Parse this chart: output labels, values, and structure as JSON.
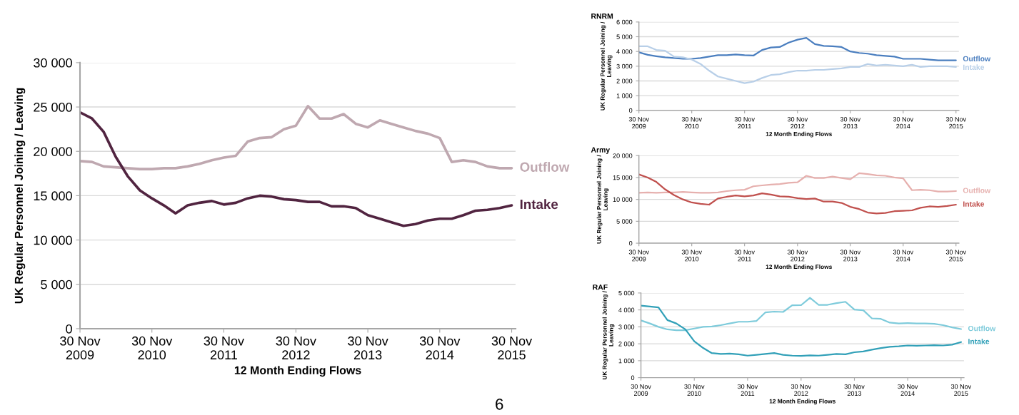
{
  "chart_data": [
    {
      "type": "line",
      "ylabel": "UK Regular Personnel Joining / Leaving",
      "xlabel": "12 Month Ending Flows",
      "annotations": [
        "6"
      ],
      "x": [
        "2009-11-30",
        "2010-01-30",
        "2010-03-30",
        "2010-05-30",
        "2010-07-30",
        "2010-09-30",
        "2010-11-30",
        "2011-01-30",
        "2011-03-30",
        "2011-05-30",
        "2011-07-30",
        "2011-09-30",
        "2011-11-30",
        "2012-01-30",
        "2012-03-30",
        "2012-05-30",
        "2012-07-30",
        "2012-09-30",
        "2012-11-30",
        "2013-01-30",
        "2013-03-30",
        "2013-05-30",
        "2013-07-30",
        "2013-09-30",
        "2013-11-30",
        "2014-01-30",
        "2014-03-30",
        "2014-05-30",
        "2014-07-30",
        "2014-09-30",
        "2014-11-30",
        "2015-01-30",
        "2015-03-30",
        "2015-05-30",
        "2015-07-30",
        "2015-09-30",
        "2015-11-30"
      ],
      "series": [
        {
          "name": "Outflow",
          "color": "#bfa8b0",
          "values": [
            18900,
            18800,
            18300,
            18200,
            18100,
            18000,
            18000,
            18100,
            18100,
            18300,
            18600,
            19000,
            19300,
            19500,
            21100,
            21500,
            21600,
            22500,
            22900,
            25100,
            23700,
            23700,
            24200,
            23100,
            22700,
            23500,
            23100,
            22700,
            22300,
            22000,
            21500,
            18800,
            19000,
            18800,
            18300,
            18100,
            18100
          ]
        },
        {
          "name": "Intake",
          "color": "#512440",
          "values": [
            24400,
            23700,
            22200,
            19400,
            17200,
            15600,
            14700,
            13900,
            13000,
            13900,
            14200,
            14400,
            14000,
            14200,
            14700,
            15000,
            14900,
            14600,
            14500,
            14300,
            14300,
            13800,
            13800,
            13600,
            12800,
            12400,
            12000,
            11600,
            11800,
            12200,
            12400,
            12400,
            12800,
            13300,
            13400,
            13600,
            13900
          ]
        }
      ],
      "xlim": [
        "2009-11-30",
        "2015-12-20"
      ],
      "xticks": [
        {
          "value": "2009-11-30",
          "label": "30 Nov\n2009"
        },
        {
          "value": "2010-11-30",
          "label": "30 Nov\n2010"
        },
        {
          "value": "2011-11-30",
          "label": "30 Nov\n2011"
        },
        {
          "value": "2012-11-30",
          "label": "30 Nov\n2012"
        },
        {
          "value": "2013-11-30",
          "label": "30 Nov\n2013"
        },
        {
          "value": "2014-11-30",
          "label": "30 Nov\n2014"
        },
        {
          "value": "2015-11-30",
          "label": "30 Nov\n2015"
        }
      ],
      "ylim": [
        0,
        30000
      ],
      "yticks": [
        {
          "value": 0,
          "label": "0"
        },
        {
          "value": 5000,
          "label": "5 000"
        },
        {
          "value": 10000,
          "label": "10 000"
        },
        {
          "value": 15000,
          "label": "15 000"
        },
        {
          "value": 20000,
          "label": "20 000"
        },
        {
          "value": 25000,
          "label": "25 000"
        },
        {
          "value": 30000,
          "label": "30 000"
        }
      ],
      "grid": "y",
      "legend": false
    },
    {
      "type": "line",
      "title": "RNRM",
      "ylabel": "UK Regular Personnel Joining /\nLeaving",
      "xlabel": "12 Month Ending Flows",
      "x": [
        "2009-11-30",
        "2010-01-30",
        "2010-03-30",
        "2010-05-30",
        "2010-07-30",
        "2010-09-30",
        "2010-11-30",
        "2011-01-30",
        "2011-03-30",
        "2011-05-30",
        "2011-07-30",
        "2011-09-30",
        "2011-11-30",
        "2012-01-30",
        "2012-03-30",
        "2012-05-30",
        "2012-07-30",
        "2012-09-30",
        "2012-11-30",
        "2013-01-30",
        "2013-03-30",
        "2013-05-30",
        "2013-07-30",
        "2013-09-30",
        "2013-11-30",
        "2014-01-30",
        "2014-03-30",
        "2014-05-30",
        "2014-07-30",
        "2014-09-30",
        "2014-11-30",
        "2015-01-30",
        "2015-03-30",
        "2015-05-30",
        "2015-07-30",
        "2015-09-30",
        "2015-11-30"
      ],
      "series": [
        {
          "name": "Outflow",
          "color": "#4a7ebf",
          "values": [
            3940,
            3770,
            3680,
            3600,
            3550,
            3500,
            3500,
            3550,
            3650,
            3750,
            3750,
            3800,
            3750,
            3720,
            4100,
            4270,
            4300,
            4600,
            4800,
            4920,
            4500,
            4380,
            4350,
            4300,
            4000,
            3900,
            3850,
            3750,
            3700,
            3650,
            3500,
            3500,
            3500,
            3450,
            3400,
            3400,
            3400
          ]
        },
        {
          "name": "Intake",
          "color": "#b8cfe8",
          "values": [
            4350,
            4350,
            4100,
            4050,
            3650,
            3600,
            3450,
            3150,
            2700,
            2300,
            2150,
            2000,
            1850,
            1950,
            2200,
            2400,
            2450,
            2600,
            2700,
            2700,
            2750,
            2750,
            2800,
            2850,
            2950,
            2950,
            3150,
            3050,
            3100,
            3050,
            3000,
            3100,
            2950,
            3000,
            3000,
            3000,
            2950
          ]
        }
      ],
      "xlim": [
        "2009-11-30",
        "2015-12-20"
      ],
      "xticks": [
        {
          "value": "2009-11-30",
          "label": "30 Nov\n2009"
        },
        {
          "value": "2010-11-30",
          "label": "30 Nov\n2010"
        },
        {
          "value": "2011-11-30",
          "label": "30 Nov\n2011"
        },
        {
          "value": "2012-11-30",
          "label": "30 Nov\n2012"
        },
        {
          "value": "2013-11-30",
          "label": "30 Nov\n2013"
        },
        {
          "value": "2014-11-30",
          "label": "30 Nov\n2014"
        },
        {
          "value": "2015-11-30",
          "label": "30 Nov\n2015"
        }
      ],
      "ylim": [
        0,
        6000
      ],
      "yticks": [
        {
          "value": 0,
          "label": "0"
        },
        {
          "value": 1000,
          "label": "1 000"
        },
        {
          "value": 2000,
          "label": "2 000"
        },
        {
          "value": 3000,
          "label": "3 000"
        },
        {
          "value": 4000,
          "label": "4 000"
        },
        {
          "value": 5000,
          "label": "5 000"
        },
        {
          "value": 6000,
          "label": "6 000"
        }
      ],
      "grid": "y",
      "legend": false
    },
    {
      "type": "line",
      "title": "Army",
      "ylabel": "UK Regular Personnel Joining /\nLeaving",
      "xlabel": "12 Month Ending Flows",
      "x": [
        "2009-11-30",
        "2010-01-30",
        "2010-03-30",
        "2010-05-30",
        "2010-07-30",
        "2010-09-30",
        "2010-11-30",
        "2011-01-30",
        "2011-03-30",
        "2011-05-30",
        "2011-07-30",
        "2011-09-30",
        "2011-11-30",
        "2012-01-30",
        "2012-03-30",
        "2012-05-30",
        "2012-07-30",
        "2012-09-30",
        "2012-11-30",
        "2013-01-30",
        "2013-03-30",
        "2013-05-30",
        "2013-07-30",
        "2013-09-30",
        "2013-11-30",
        "2014-01-30",
        "2014-03-30",
        "2014-05-30",
        "2014-07-30",
        "2014-09-30",
        "2014-11-30",
        "2015-01-30",
        "2015-03-30",
        "2015-05-30",
        "2015-07-30",
        "2015-09-30",
        "2015-11-30"
      ],
      "series": [
        {
          "name": "Outflow",
          "color": "#e6b0ae",
          "values": [
            11500,
            11600,
            11500,
            11600,
            11600,
            11700,
            11600,
            11500,
            11500,
            11600,
            11900,
            12100,
            12200,
            13000,
            13200,
            13400,
            13500,
            13800,
            13900,
            15400,
            14900,
            14900,
            15200,
            14900,
            14600,
            16000,
            15800,
            15500,
            15400,
            15000,
            14800,
            12100,
            12200,
            12100,
            11800,
            11800,
            11900
          ]
        },
        {
          "name": "Intake",
          "color": "#c0504d",
          "values": [
            15700,
            15000,
            14000,
            12300,
            11000,
            10000,
            9300,
            9000,
            8800,
            10200,
            10600,
            10900,
            10700,
            10900,
            11400,
            11100,
            10700,
            10600,
            10300,
            10100,
            10200,
            9500,
            9500,
            9200,
            8300,
            7800,
            7000,
            6800,
            6900,
            7300,
            7400,
            7500,
            8100,
            8400,
            8300,
            8500,
            8800
          ]
        }
      ],
      "xlim": [
        "2009-11-30",
        "2015-12-20"
      ],
      "xticks": [
        {
          "value": "2009-11-30",
          "label": "30 Nov\n2009"
        },
        {
          "value": "2010-11-30",
          "label": "30 Nov\n2010"
        },
        {
          "value": "2011-11-30",
          "label": "30 Nov\n2011"
        },
        {
          "value": "2012-11-30",
          "label": "30 Nov\n2012"
        },
        {
          "value": "2013-11-30",
          "label": "30 Nov\n2013"
        },
        {
          "value": "2014-11-30",
          "label": "30 Nov\n2014"
        },
        {
          "value": "2015-11-30",
          "label": "30 Nov\n2015"
        }
      ],
      "ylim": [
        0,
        20000
      ],
      "yticks": [
        {
          "value": 0,
          "label": "0"
        },
        {
          "value": 5000,
          "label": "5 000"
        },
        {
          "value": 10000,
          "label": "10 000"
        },
        {
          "value": 15000,
          "label": "15 000"
        },
        {
          "value": 20000,
          "label": "20 000"
        }
      ],
      "grid": "y",
      "legend": false
    },
    {
      "type": "line",
      "title": "RAF",
      "ylabel": "UK Regular Personnel Joining /\nLeaving",
      "xlabel": "12 Month Ending Flows",
      "x": [
        "2009-11-30",
        "2010-01-30",
        "2010-03-30",
        "2010-05-30",
        "2010-07-30",
        "2010-09-30",
        "2010-11-30",
        "2011-01-30",
        "2011-03-30",
        "2011-05-30",
        "2011-07-30",
        "2011-09-30",
        "2011-11-30",
        "2012-01-30",
        "2012-03-30",
        "2012-05-30",
        "2012-07-30",
        "2012-09-30",
        "2012-11-30",
        "2013-01-30",
        "2013-03-30",
        "2013-05-30",
        "2013-07-30",
        "2013-09-30",
        "2013-11-30",
        "2014-01-30",
        "2014-03-30",
        "2014-05-30",
        "2014-07-30",
        "2014-09-30",
        "2014-11-30",
        "2015-01-30",
        "2015-03-30",
        "2015-05-30",
        "2015-07-30",
        "2015-09-30",
        "2015-11-30"
      ],
      "series": [
        {
          "name": "Outflow",
          "color": "#7ecbdb",
          "values": [
            3380,
            3200,
            3000,
            2850,
            2800,
            2800,
            2900,
            3000,
            3020,
            3100,
            3200,
            3300,
            3300,
            3350,
            3850,
            3900,
            3880,
            4270,
            4280,
            4720,
            4300,
            4300,
            4400,
            4480,
            4020,
            3980,
            3500,
            3470,
            3250,
            3200,
            3220,
            3200,
            3200,
            3180,
            3100,
            2970,
            2870
          ]
        },
        {
          "name": "Intake",
          "color": "#31a0b8",
          "values": [
            4250,
            4200,
            4150,
            3400,
            3200,
            2850,
            2150,
            1750,
            1450,
            1400,
            1420,
            1380,
            1300,
            1350,
            1400,
            1450,
            1350,
            1300,
            1280,
            1320,
            1300,
            1350,
            1400,
            1380,
            1500,
            1550,
            1650,
            1750,
            1820,
            1850,
            1900,
            1880,
            1900,
            1920,
            1900,
            1950,
            2100
          ]
        }
      ],
      "xlim": [
        "2009-11-30",
        "2015-12-20"
      ],
      "xticks": [
        {
          "value": "2009-11-30",
          "label": "30 Nov\n2009"
        },
        {
          "value": "2010-11-30",
          "label": "30 Nov\n2010"
        },
        {
          "value": "2011-11-30",
          "label": "30 Nov\n2011"
        },
        {
          "value": "2012-11-30",
          "label": "30 Nov\n2012"
        },
        {
          "value": "2013-11-30",
          "label": "30 Nov\n2013"
        },
        {
          "value": "2014-11-30",
          "label": "30 Nov\n2014"
        },
        {
          "value": "2015-11-30",
          "label": "30 Nov\n2015"
        }
      ],
      "ylim": [
        0,
        5000
      ],
      "yticks": [
        {
          "value": 0,
          "label": "0"
        },
        {
          "value": 1000,
          "label": "1 000"
        },
        {
          "value": 2000,
          "label": "2 000"
        },
        {
          "value": 3000,
          "label": "3 000"
        },
        {
          "value": 4000,
          "label": "4 000"
        },
        {
          "value": 5000,
          "label": "5 000"
        }
      ],
      "grid": "y",
      "legend": false
    }
  ]
}
